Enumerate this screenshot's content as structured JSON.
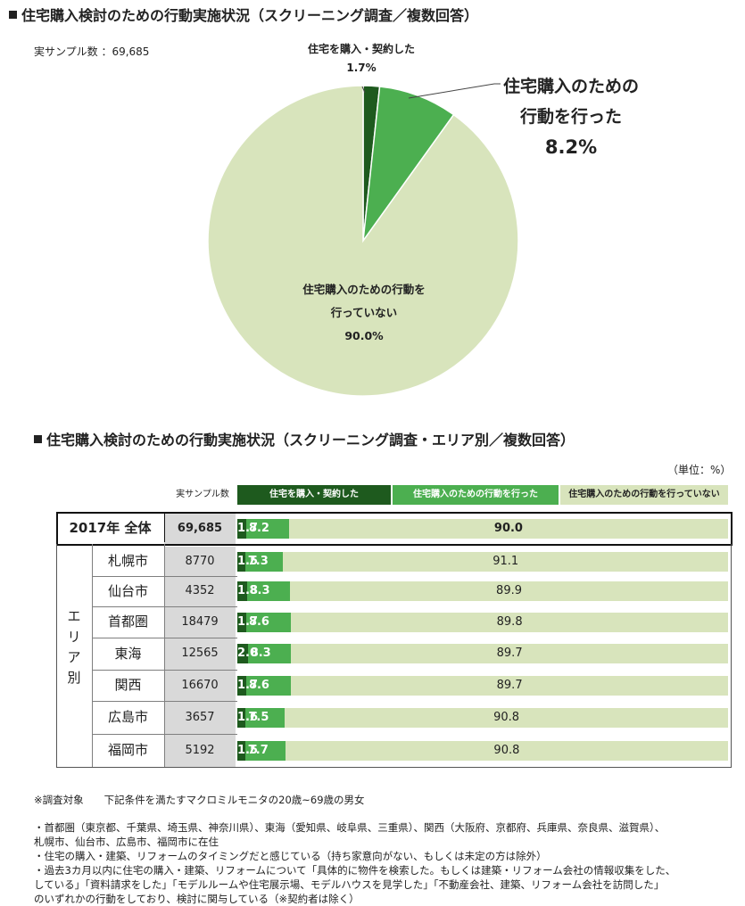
{
  "chart1": {
    "title": "住宅購入検討のための行動実施状況（スクリーニング調査／複数回答）",
    "sample_label": "実サンプル数 ：69,685"
  },
  "chart2": {
    "title": "住宅購入検討のための行動実施状況（スクリーニング調査・エリア別／複数回答）",
    "unit": "（単位：%）",
    "col_sample": "実サンプル数",
    "group_label": "エリア別",
    "legend": [
      "住宅を購入・契約した",
      "住宅購入のための行動を行った",
      "住宅購入のための行動を行っていない"
    ]
  },
  "colors": {
    "dark": "#1e5a1e",
    "mid": "#4caf50",
    "light": "#d8e4bc"
  },
  "chart_data": [
    {
      "type": "pie",
      "title": "住宅購入検討のための行動実施状況（スクリーニング調査／複数回答）",
      "slices": [
        {
          "label": "住宅を購入・契約した",
          "value": 1.7,
          "value_label": "1.7%"
        },
        {
          "label": "住宅購入のための行動を行った",
          "value": 8.2,
          "value_label": "8.2%"
        },
        {
          "label": "住宅購入のための行動を行っていない",
          "value": 90.0,
          "value_label": "90.0%"
        }
      ],
      "label_lines": [
        [
          "住宅購入のための",
          "行動を行った"
        ],
        [
          "住宅購入のための行動を",
          "行っていない"
        ]
      ]
    },
    {
      "type": "bar",
      "orientation": "horizontal-stacked",
      "title": "住宅購入検討のための行動実施状況（スクリーニング調査・エリア別／複数回答）",
      "series": [
        "住宅を購入・契約した",
        "住宅購入のための行動を行った",
        "住宅購入のための行動を行っていない"
      ],
      "rows": [
        {
          "label": "2017年 全体",
          "n": "69,685",
          "values": [
            1.7,
            8.2,
            90.0
          ],
          "labels": [
            "1.7",
            "8.2",
            "90.0"
          ]
        },
        {
          "label": "札幌市",
          "n": "8770",
          "values": [
            1.5,
            7.3,
            91.1
          ],
          "labels": [
            "1.5",
            "7.3",
            "91.1"
          ]
        },
        {
          "label": "仙台市",
          "n": "4352",
          "values": [
            1.8,
            8.3,
            89.9
          ],
          "labels": [
            "1.8",
            "8.3",
            "89.9"
          ]
        },
        {
          "label": "首都圏",
          "n": "18479",
          "values": [
            1.7,
            8.6,
            89.8
          ],
          "labels": [
            "1.7",
            "8.6",
            "89.8"
          ]
        },
        {
          "label": "東海",
          "n": "12565",
          "values": [
            2.0,
            8.3,
            89.7
          ],
          "labels": [
            "2.0",
            "8.3",
            "89.7"
          ]
        },
        {
          "label": "関西",
          "n": "16670",
          "values": [
            1.7,
            8.6,
            89.7
          ],
          "labels": [
            "1.7",
            "8.6",
            "89.7"
          ]
        },
        {
          "label": "広島市",
          "n": "3657",
          "values": [
            1.6,
            7.5,
            90.8
          ],
          "labels": [
            "1.6",
            "7.5",
            "90.8"
          ]
        },
        {
          "label": "福岡市",
          "n": "5192",
          "values": [
            1.5,
            7.7,
            90.8
          ],
          "labels": [
            "1.5",
            "7.7",
            "90.8"
          ]
        }
      ]
    }
  ],
  "notes": [
    "※調査対象　　下記条件を満たすマクロミルモニタの20歳~69歳の男女",
    "・首都圏（東京都、千葉県、埼玉県、神奈川県）、東海（愛知県、岐阜県、三重県）、関西（大阪府、京都府、兵庫県、奈良県、滋賀県）、",
    "札幌市、仙台市、広島市、福岡市に在住",
    "・住宅の購入・建築、リフォームのタイミングだと感じている（持ち家意向がない、もしくは未定の方は除外）",
    "・過去3カ月以内に住宅の購入・建築、リフォームについて「具体的に物件を検索した。もしくは建築・リフォーム会社の情報収集をした、",
    "している」「資料請求をした」「モデルルームや住宅展示場、モデルハウスを見学した」「不動産会社、建築、リフォーム会社を訪問した」",
    "のいずれかの行動をしており、検討に関与している（※契約者は除く）"
  ]
}
